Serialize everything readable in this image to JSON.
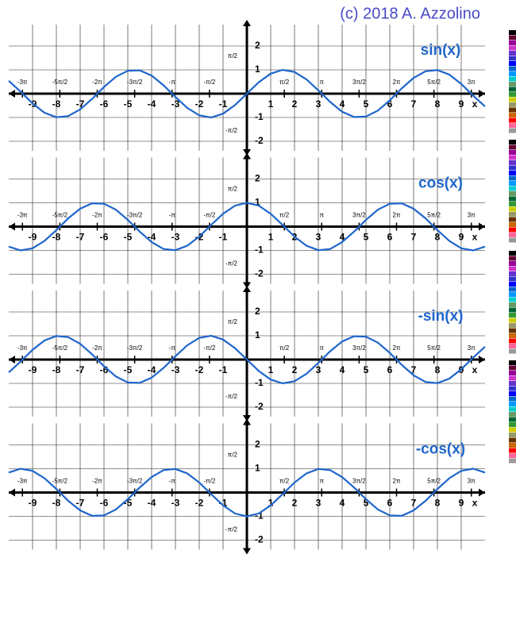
{
  "credit": "(c) 2018 A. Azzolino",
  "chart_data": [
    {
      "type": "line",
      "title": "sin(x)",
      "xlabel": "x",
      "color": "#1f66cc",
      "grid": true,
      "xlim": [
        -10,
        10
      ],
      "ylim": [
        -2.4,
        2.9
      ],
      "xticks": [
        -9,
        -8,
        -7,
        -6,
        -5,
        -4,
        -3,
        -2,
        -1,
        1,
        2,
        3,
        4,
        5,
        6,
        7,
        8,
        9
      ],
      "pi_ticks": [
        {
          "value": -9.4248,
          "label": "-3π"
        },
        {
          "value": -7.854,
          "label": "-5π/2"
        },
        {
          "value": -6.2832,
          "label": "-2π"
        },
        {
          "value": -4.7124,
          "label": "-3π/2"
        },
        {
          "value": -3.1416,
          "label": "-π"
        },
        {
          "value": -1.5708,
          "label": "-π/2"
        },
        {
          "value": 1.5708,
          "label": "π/2"
        },
        {
          "value": 3.1416,
          "label": "π"
        },
        {
          "value": 4.7124,
          "label": "3π/2"
        },
        {
          "value": 6.2832,
          "label": "2π"
        },
        {
          "value": 7.854,
          "label": "5π/2"
        },
        {
          "value": 9.4248,
          "label": "3π"
        }
      ],
      "yticks": [
        -2,
        -1,
        1,
        2,
        {
          "value": 1.5708,
          "label": "π/2"
        },
        {
          "value": -1.5708,
          "label": "-π/2"
        }
      ],
      "x": [
        -10,
        -9.5,
        -9,
        -8.5,
        -8,
        -7.5,
        -7,
        -6.5,
        -6,
        -5.5,
        -5,
        -4.5,
        -4,
        -3.5,
        -3,
        -2.5,
        -2,
        -1.5,
        -1,
        -0.5,
        0,
        0.5,
        1,
        1.5,
        2,
        2.5,
        3,
        3.5,
        4,
        4.5,
        5,
        5.5,
        6,
        6.5,
        7,
        7.5,
        8,
        8.5,
        9,
        9.5,
        10
      ],
      "values": [
        0.54,
        0.08,
        -0.41,
        -0.8,
        -0.99,
        -0.94,
        -0.66,
        -0.22,
        0.28,
        0.71,
        0.96,
        0.98,
        0.76,
        0.35,
        -0.14,
        -0.6,
        -0.91,
        -1,
        -0.84,
        -0.48,
        0,
        0.48,
        0.84,
        1,
        0.91,
        0.6,
        0.14,
        -0.35,
        -0.76,
        -0.98,
        -0.96,
        -0.71,
        -0.28,
        0.22,
        0.66,
        0.94,
        0.99,
        0.8,
        0.41,
        -0.08,
        -0.54
      ]
    },
    {
      "type": "line",
      "title": "cos(x)",
      "xlabel": "x",
      "color": "#1f66cc",
      "grid": true,
      "xlim": [
        -10,
        10
      ],
      "ylim": [
        -2.4,
        2.9
      ],
      "xticks": [
        -9,
        -8,
        -7,
        -6,
        -5,
        -4,
        -3,
        -2,
        -1,
        1,
        2,
        3,
        4,
        5,
        6,
        7,
        8,
        9
      ],
      "pi_ticks": [
        {
          "value": -9.4248,
          "label": "-3π"
        },
        {
          "value": -7.854,
          "label": "-5π/2"
        },
        {
          "value": -6.2832,
          "label": "-2π"
        },
        {
          "value": -4.7124,
          "label": "-3π/2"
        },
        {
          "value": -3.1416,
          "label": "-π"
        },
        {
          "value": -1.5708,
          "label": "-π/2"
        },
        {
          "value": 1.5708,
          "label": "π/2"
        },
        {
          "value": 3.1416,
          "label": "π"
        },
        {
          "value": 4.7124,
          "label": "3π/2"
        },
        {
          "value": 6.2832,
          "label": "2π"
        },
        {
          "value": 7.854,
          "label": "5π/2"
        },
        {
          "value": 9.4248,
          "label": "3π"
        }
      ],
      "yticks": [
        -2,
        -1,
        1,
        2,
        {
          "value": 1.5708,
          "label": "π/2"
        },
        {
          "value": -1.5708,
          "label": "-π/2"
        }
      ],
      "x": [
        -10,
        -9.5,
        -9,
        -8.5,
        -8,
        -7.5,
        -7,
        -6.5,
        -6,
        -5.5,
        -5,
        -4.5,
        -4,
        -3.5,
        -3,
        -2.5,
        -2,
        -1.5,
        -1,
        -0.5,
        0,
        0.5,
        1,
        1.5,
        2,
        2.5,
        3,
        3.5,
        4,
        4.5,
        5,
        5.5,
        6,
        6.5,
        7,
        7.5,
        8,
        8.5,
        9,
        9.5,
        10
      ],
      "values": [
        -0.84,
        -1,
        -0.91,
        -0.6,
        -0.15,
        0.35,
        0.75,
        0.98,
        0.96,
        0.71,
        0.28,
        -0.21,
        -0.65,
        -0.94,
        -0.99,
        -0.8,
        -0.42,
        0.07,
        0.54,
        0.88,
        1,
        0.88,
        0.54,
        0.07,
        -0.42,
        -0.8,
        -0.99,
        -0.94,
        -0.65,
        -0.21,
        0.28,
        0.71,
        0.96,
        0.98,
        0.75,
        0.35,
        -0.15,
        -0.6,
        -0.91,
        -1,
        -0.84
      ]
    },
    {
      "type": "line",
      "title": "-sin(x)",
      "xlabel": "x",
      "color": "#1f66cc",
      "grid": true,
      "xlim": [
        -10,
        10
      ],
      "ylim": [
        -2.4,
        2.9
      ],
      "xticks": [
        -9,
        -8,
        -7,
        -6,
        -5,
        -4,
        -3,
        -2,
        -1,
        1,
        2,
        3,
        4,
        5,
        6,
        7,
        8,
        9
      ],
      "pi_ticks": [
        {
          "value": -9.4248,
          "label": "-3π"
        },
        {
          "value": -7.854,
          "label": "-5π/2"
        },
        {
          "value": -6.2832,
          "label": "-2π"
        },
        {
          "value": -4.7124,
          "label": "-3π/2"
        },
        {
          "value": -3.1416,
          "label": "-π"
        },
        {
          "value": -1.5708,
          "label": "-π/2"
        },
        {
          "value": 1.5708,
          "label": "π/2"
        },
        {
          "value": 3.1416,
          "label": "π"
        },
        {
          "value": 4.7124,
          "label": "3π/2"
        },
        {
          "value": 6.2832,
          "label": "2π"
        },
        {
          "value": 7.854,
          "label": "5π/2"
        },
        {
          "value": 9.4248,
          "label": "3π"
        }
      ],
      "yticks": [
        -2,
        -1,
        1,
        2,
        {
          "value": 1.5708,
          "label": "π/2"
        },
        {
          "value": -1.5708,
          "label": "-π/2"
        }
      ],
      "x": [
        -10,
        -9.5,
        -9,
        -8.5,
        -8,
        -7.5,
        -7,
        -6.5,
        -6,
        -5.5,
        -5,
        -4.5,
        -4,
        -3.5,
        -3,
        -2.5,
        -2,
        -1.5,
        -1,
        -0.5,
        0,
        0.5,
        1,
        1.5,
        2,
        2.5,
        3,
        3.5,
        4,
        4.5,
        5,
        5.5,
        6,
        6.5,
        7,
        7.5,
        8,
        8.5,
        9,
        9.5,
        10
      ],
      "values": [
        -0.54,
        -0.08,
        0.41,
        0.8,
        0.99,
        0.94,
        0.66,
        0.22,
        -0.28,
        -0.71,
        -0.96,
        -0.98,
        -0.76,
        -0.35,
        0.14,
        0.6,
        0.91,
        1,
        0.84,
        0.48,
        0,
        -0.48,
        -0.84,
        -1,
        -0.91,
        -0.6,
        -0.14,
        0.35,
        0.76,
        0.98,
        0.96,
        0.71,
        0.28,
        -0.22,
        -0.66,
        -0.94,
        -0.99,
        -0.8,
        -0.41,
        0.08,
        0.54
      ]
    },
    {
      "type": "line",
      "title": "-cos(x)",
      "xlabel": "x",
      "color": "#1f66cc",
      "grid": true,
      "xlim": [
        -10,
        10
      ],
      "ylim": [
        -2.4,
        2.9
      ],
      "xticks": [
        -9,
        -8,
        -7,
        -6,
        -5,
        -4,
        -3,
        -2,
        -1,
        1,
        2,
        3,
        4,
        5,
        6,
        7,
        8,
        9
      ],
      "pi_ticks": [
        {
          "value": -9.4248,
          "label": "-3π"
        },
        {
          "value": -7.854,
          "label": "-5π/2"
        },
        {
          "value": -6.2832,
          "label": "-2π"
        },
        {
          "value": -4.7124,
          "label": "-3π/2"
        },
        {
          "value": -3.1416,
          "label": "-π"
        },
        {
          "value": -1.5708,
          "label": "-π/2"
        },
        {
          "value": 1.5708,
          "label": "π/2"
        },
        {
          "value": 3.1416,
          "label": "π"
        },
        {
          "value": 4.7124,
          "label": "3π/2"
        },
        {
          "value": 6.2832,
          "label": "2π"
        },
        {
          "value": 7.854,
          "label": "5π/2"
        },
        {
          "value": 9.4248,
          "label": "3π"
        }
      ],
      "yticks": [
        -2,
        -1,
        1,
        2,
        {
          "value": 1.5708,
          "label": "π/2"
        },
        {
          "value": -1.5708,
          "label": "-π/2"
        }
      ],
      "x": [
        -10,
        -9.5,
        -9,
        -8.5,
        -8,
        -7.5,
        -7,
        -6.5,
        -6,
        -5.5,
        -5,
        -4.5,
        -4,
        -3.5,
        -3,
        -2.5,
        -2,
        -1.5,
        -1,
        -0.5,
        0,
        0.5,
        1,
        1.5,
        2,
        2.5,
        3,
        3.5,
        4,
        4.5,
        5,
        5.5,
        6,
        6.5,
        7,
        7.5,
        8,
        8.5,
        9,
        9.5,
        10
      ],
      "values": [
        0.84,
        1,
        0.91,
        0.6,
        0.15,
        -0.35,
        -0.75,
        -0.98,
        -0.96,
        -0.71,
        -0.28,
        0.21,
        0.65,
        0.94,
        0.99,
        0.8,
        0.42,
        -0.07,
        -0.54,
        -0.88,
        -1,
        -0.88,
        -0.54,
        -0.07,
        0.42,
        0.8,
        0.99,
        0.94,
        0.65,
        0.21,
        -0.28,
        -0.71,
        -0.96,
        -0.98,
        -0.75,
        -0.35,
        0.15,
        0.6,
        0.91,
        1,
        0.84
      ]
    }
  ]
}
